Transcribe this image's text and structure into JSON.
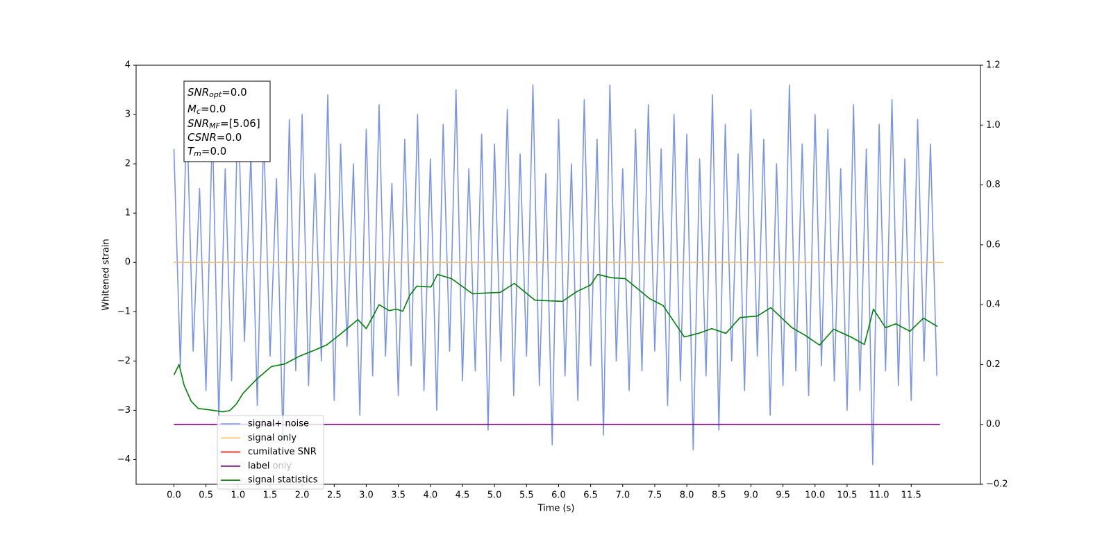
{
  "chart_data": {
    "type": "line",
    "xlabel": "Time (s)",
    "ylabel": "Whitened strain",
    "xlim": [
      -0.59,
      12.58
    ],
    "xticks": [
      {
        "value": 0,
        "label": "0.0"
      },
      {
        "value": 0.5,
        "label": "0.5"
      },
      {
        "value": 1,
        "label": "1.0"
      },
      {
        "value": 1.5,
        "label": "1.5"
      },
      {
        "value": 2,
        "label": "2.0"
      },
      {
        "value": 2.5,
        "label": "2.5"
      },
      {
        "value": 3,
        "label": "3.0"
      },
      {
        "value": 3.5,
        "label": "3.5"
      },
      {
        "value": 4,
        "label": "4.0"
      },
      {
        "value": 4.5,
        "label": "4.5"
      },
      {
        "value": 5,
        "label": "5.0"
      },
      {
        "value": 5.5,
        "label": "5.5"
      },
      {
        "value": 6,
        "label": "6.0"
      },
      {
        "value": 6.5,
        "label": "6.5"
      },
      {
        "value": 7,
        "label": "7.0"
      },
      {
        "value": 7.5,
        "label": "7.5"
      },
      {
        "value": 8,
        "label": "8.0"
      },
      {
        "value": 8.5,
        "label": "8.5"
      },
      {
        "value": 9,
        "label": "9.0"
      },
      {
        "value": 9.5,
        "label": "9.5"
      },
      {
        "value": 10,
        "label": "10.0"
      },
      {
        "value": 10.5,
        "label": "10.5"
      },
      {
        "value": 11,
        "label": "11.0"
      },
      {
        "value": 11.5,
        "label": "11.5"
      }
    ],
    "ylim": [
      -4.5,
      4
    ],
    "yticks": [
      {
        "value": -4,
        "label": "−4"
      },
      {
        "value": -3,
        "label": "−3"
      },
      {
        "value": -2,
        "label": "−2"
      },
      {
        "value": -1,
        "label": "−1"
      },
      0,
      1,
      2,
      3,
      4
    ],
    "y2lim": [
      -0.2,
      1.2
    ],
    "y2ticks": [
      {
        "value": -0.2,
        "label": "−0.2"
      },
      {
        "value": 0,
        "label": "0.0"
      },
      0.2,
      0.4,
      0.6,
      0.8,
      {
        "value": 1,
        "label": "1.0"
      },
      1.2
    ],
    "annotation_box": [
      {
        "main": "SNR",
        "sub": "opt",
        "rest": "=0.0"
      },
      {
        "main": "M",
        "sub": "c",
        "rest": "=0.0"
      },
      {
        "main": "SNR",
        "sub": "MF",
        "rest": "=[5.06]"
      },
      {
        "main": "CSNR",
        "sub": "",
        "rest": "=0.0"
      },
      {
        "main": "T",
        "sub": "m",
        "rest": "=0.0"
      }
    ],
    "legend_overlay_text": "label only",
    "legend": "lower left",
    "series": [
      {
        "name": "signal+ noise",
        "color": "#7a95e8",
        "axis": "y",
        "x": [
          0.0,
          0.1,
          0.2,
          0.3,
          0.4,
          0.5,
          0.6,
          0.7,
          0.8,
          0.9,
          1.0,
          1.1,
          1.2,
          1.3,
          1.4,
          1.5,
          1.6,
          1.7,
          1.8,
          1.9,
          2.0,
          2.1,
          2.2,
          2.3,
          2.4,
          2.5,
          2.6,
          2.7,
          2.8,
          2.9,
          3.0,
          3.1,
          3.2,
          3.3,
          3.4,
          3.5,
          3.6,
          3.7,
          3.8,
          3.9,
          4.0,
          4.1,
          4.2,
          4.3,
          4.4,
          4.5,
          4.6,
          4.7,
          4.8,
          4.9,
          5.0,
          5.1,
          5.2,
          5.3,
          5.4,
          5.5,
          5.6,
          5.7,
          5.8,
          5.9,
          6.0,
          6.1,
          6.2,
          6.3,
          6.4,
          6.5,
          6.6,
          6.7,
          6.8,
          6.9,
          7.0,
          7.1,
          7.2,
          7.3,
          7.4,
          7.5,
          7.6,
          7.7,
          7.8,
          7.9,
          8.0,
          8.1,
          8.2,
          8.3,
          8.4,
          8.5,
          8.6,
          8.7,
          8.8,
          8.9,
          9.0,
          9.1,
          9.2,
          9.3,
          9.4,
          9.5,
          9.6,
          9.7,
          9.8,
          9.9,
          10.0,
          10.1,
          10.2,
          10.3,
          10.4,
          10.5,
          10.6,
          10.7,
          10.8,
          10.9,
          11.0,
          11.1,
          11.2,
          11.3,
          11.4,
          11.5,
          11.6,
          11.7,
          11.8,
          11.9
        ],
        "values": [
          2.3,
          -2.1,
          3.1,
          -1.8,
          1.5,
          -2.6,
          2.8,
          -3.2,
          1.9,
          -2.4,
          3.3,
          -1.6,
          2.2,
          -2.9,
          2.6,
          -1.9,
          1.7,
          -3.6,
          2.9,
          -2.2,
          3.0,
          -2.5,
          1.8,
          -2.0,
          3.4,
          -2.8,
          2.4,
          -1.7,
          2.0,
          -3.1,
          2.7,
          -2.3,
          3.2,
          -1.9,
          1.6,
          -2.7,
          2.5,
          -2.1,
          3.0,
          -2.6,
          2.1,
          -3.0,
          2.8,
          -1.8,
          3.5,
          -2.4,
          1.9,
          -2.2,
          2.6,
          -3.4,
          2.4,
          -2.0,
          3.1,
          -2.7,
          2.2,
          -1.9,
          3.6,
          -2.5,
          1.8,
          -3.7,
          2.9,
          -2.3,
          2.0,
          -2.8,
          3.3,
          -2.1,
          2.5,
          -3.5,
          3.6,
          -2.0,
          1.9,
          -2.6,
          2.7,
          -2.2,
          3.2,
          -1.8,
          2.3,
          -2.9,
          3.0,
          -2.4,
          2.6,
          -3.8,
          2.1,
          -2.3,
          3.4,
          -3.4,
          2.8,
          -2.0,
          2.2,
          -2.6,
          3.1,
          -1.9,
          2.5,
          -3.1,
          2.0,
          -2.5,
          3.6,
          -2.2,
          2.4,
          -2.7,
          3.0,
          -2.1,
          2.7,
          -2.4,
          1.9,
          -3.0,
          3.2,
          -2.6,
          2.3,
          -4.1,
          2.8,
          -2.2,
          3.3,
          -2.5,
          2.1,
          -2.8,
          2.9,
          -2.0,
          2.4,
          -2.3
        ]
      },
      {
        "name": "signal only",
        "color": "#fbbf6e",
        "axis": "y",
        "x": [
          0,
          12
        ],
        "values": [
          0,
          0
        ]
      },
      {
        "name": "cumilative SNR",
        "color": "#ff0000",
        "axis": "y",
        "x": [],
        "values": []
      },
      {
        "name": "label",
        "color": "#800080",
        "axis": "y2",
        "x": [
          0,
          11.95
        ],
        "values": [
          0,
          0
        ]
      },
      {
        "name": "signal statistics",
        "color": "#008000",
        "axis": "y2",
        "x": [
          0,
          0.08,
          0.16,
          0.27,
          0.38,
          0.54,
          0.76,
          0.87,
          0.97,
          1.08,
          1.3,
          1.52,
          1.73,
          1.95,
          2.17,
          2.38,
          2.6,
          2.87,
          3.0,
          3.09,
          3.2,
          3.36,
          3.47,
          3.57,
          3.68,
          3.79,
          4.01,
          4.11,
          4.33,
          4.66,
          4.87,
          5.09,
          5.31,
          5.63,
          5.85,
          6.06,
          6.28,
          6.5,
          6.61,
          6.82,
          7.04,
          7.42,
          7.63,
          7.96,
          8.18,
          8.39,
          8.61,
          8.83,
          9.1,
          9.31,
          9.64,
          9.85,
          10.07,
          10.29,
          10.56,
          10.77,
          10.91,
          11.1,
          11.26,
          11.48,
          11.69,
          11.91
        ],
        "values": [
          0.165,
          0.2,
          0.13,
          0.077,
          0.053,
          0.049,
          0.042,
          0.046,
          0.067,
          0.104,
          0.153,
          0.193,
          0.202,
          0.227,
          0.246,
          0.265,
          0.302,
          0.35,
          0.32,
          0.355,
          0.4,
          0.38,
          0.385,
          0.378,
          0.432,
          0.462,
          0.459,
          0.501,
          0.487,
          0.436,
          0.439,
          0.441,
          0.471,
          0.415,
          0.413,
          0.411,
          0.443,
          0.466,
          0.501,
          0.49,
          0.487,
          0.42,
          0.397,
          0.292,
          0.304,
          0.32,
          0.304,
          0.357,
          0.362,
          0.39,
          0.323,
          0.297,
          0.265,
          0.318,
          0.292,
          0.267,
          0.385,
          0.323,
          0.336,
          0.311,
          0.355,
          0.327
        ]
      }
    ]
  }
}
